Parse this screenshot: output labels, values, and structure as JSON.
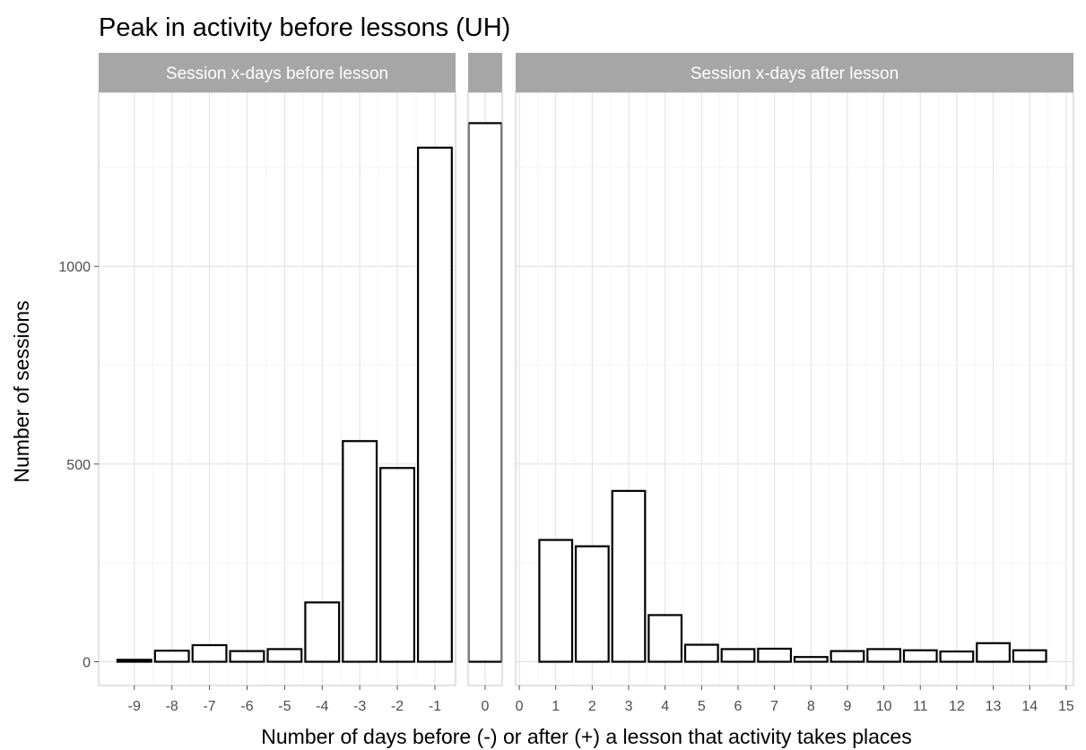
{
  "chart_data": {
    "type": "bar",
    "title": "Peak in activity before lessons (UH)",
    "xlabel": "Number of days before (-) or after (+) a lesson that activity takes places",
    "ylabel": "Number of sessions",
    "ylim": [
      -60,
      1440
    ],
    "y_ticks": [
      0,
      500,
      1000
    ],
    "grid": true,
    "bar_fill": "#ffffff",
    "bar_stroke": "#000000",
    "strip_color": "#a6a6a6",
    "panels": [
      {
        "strip": "Session x-days before lesson",
        "xlim": [
          -9.95,
          -0.45
        ],
        "x_ticks": [
          -9,
          -8,
          -7,
          -6,
          -5,
          -4,
          -3,
          -2,
          -1
        ],
        "bars": [
          {
            "x": -9,
            "y": 5
          },
          {
            "x": -8,
            "y": 28
          },
          {
            "x": -7,
            "y": 42
          },
          {
            "x": -6,
            "y": 27
          },
          {
            "x": -5,
            "y": 32
          },
          {
            "x": -4,
            "y": 150
          },
          {
            "x": -3,
            "y": 558
          },
          {
            "x": -2,
            "y": 490
          },
          {
            "x": -1,
            "y": 1300
          }
        ]
      },
      {
        "strip": "",
        "xlim": [
          -0.46,
          0.46
        ],
        "x_ticks": [
          0
        ],
        "bars": [
          {
            "x": 0,
            "y": 1362
          }
        ]
      },
      {
        "strip": "Session x-days after lesson",
        "xlim": [
          -0.1,
          15.2
        ],
        "x_ticks": [
          0,
          1,
          2,
          3,
          4,
          5,
          6,
          7,
          8,
          9,
          10,
          11,
          12,
          13,
          14,
          15
        ],
        "bars": [
          {
            "x": 1,
            "y": 308
          },
          {
            "x": 2,
            "y": 292
          },
          {
            "x": 3,
            "y": 432
          },
          {
            "x": 4,
            "y": 118
          },
          {
            "x": 5,
            "y": 43
          },
          {
            "x": 6,
            "y": 32
          },
          {
            "x": 7,
            "y": 33
          },
          {
            "x": 8,
            "y": 12
          },
          {
            "x": 9,
            "y": 27
          },
          {
            "x": 10,
            "y": 32
          },
          {
            "x": 11,
            "y": 29
          },
          {
            "x": 12,
            "y": 26
          },
          {
            "x": 13,
            "y": 47
          },
          {
            "x": 14,
            "y": 29
          }
        ]
      }
    ]
  }
}
